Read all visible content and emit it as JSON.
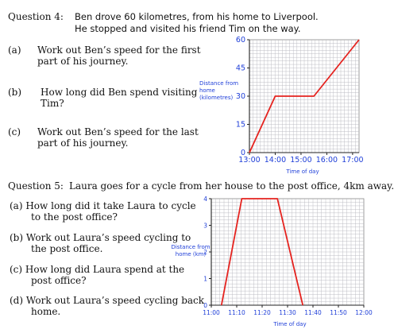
{
  "q4": {
    "label": "Question 4:",
    "line1": "Ben drove 60 kilometres, from his home to Liverpool.",
    "line2": "He stopped and visited his friend Tim on the way.",
    "a_label": "(a)",
    "a_line1": "Work out Ben’s speed for the first",
    "a_line2": "part of his journey.",
    "b_label": "(b)",
    "b_line1": "How long did Ben spend visiting",
    "b_line2": "Tim?",
    "c_label": "(c)",
    "c_line1": "Work out Ben’s speed for the last",
    "c_line2": "part of his journey."
  },
  "q5": {
    "label": "Question 5:",
    "line1": "Laura goes for a cycle from her house to the post office, 4km away.",
    "a_line1": "(a)  How long did it take Laura to cycle",
    "a_line2": "to the post office?",
    "b_line1": "(b)  Work out Laura’s speed cycling to",
    "b_line2": "the post office.",
    "c_line1": "(c)  How long did Laura spend at the",
    "c_line2": "post office?",
    "d_line1": "(d)  Work out Laura’s speed cycling back",
    "d_line2": "home."
  },
  "chart_data": [
    {
      "type": "line",
      "xlabel": "Time of day",
      "ylabel_lines": [
        "Distance from",
        "home",
        "(kilometres)"
      ],
      "x_ticks": [
        "13:00",
        "14:00",
        "15:00",
        "16:00",
        "17:00"
      ],
      "y_ticks": [
        "0",
        "15",
        "30",
        "45",
        "60"
      ],
      "xlim_hours": [
        13,
        17.25
      ],
      "ylim": [
        0,
        60
      ],
      "series": [
        {
          "x": [
            13,
            14,
            15.5,
            17.25
          ],
          "y": [
            0,
            30,
            30,
            60
          ]
        }
      ],
      "colors": {
        "line": "#e5231f",
        "grid": "#b8b8c0",
        "axis": "#222222",
        "label": "#1f3fd8"
      }
    },
    {
      "type": "line",
      "xlabel": "Time of day",
      "ylabel_lines": [
        "Distance from",
        "home (km)"
      ],
      "x_ticks": [
        "11:00",
        "11:10",
        "11:20",
        "11:30",
        "11:40",
        "11:50",
        "12:00"
      ],
      "y_ticks": [
        "0",
        "1",
        "2",
        "3",
        "4"
      ],
      "xlim_minutes": [
        0,
        60
      ],
      "ylim": [
        0,
        4
      ],
      "series": [
        {
          "x": [
            4,
            12,
            22,
            26,
            36
          ],
          "y": [
            0,
            4,
            4,
            4,
            0
          ],
          "x_note": "minutes after 11:00"
        }
      ],
      "colors": {
        "line": "#e5231f",
        "grid": "#b8b8c0",
        "axis": "#222222",
        "label": "#1f3fd8"
      }
    }
  ]
}
